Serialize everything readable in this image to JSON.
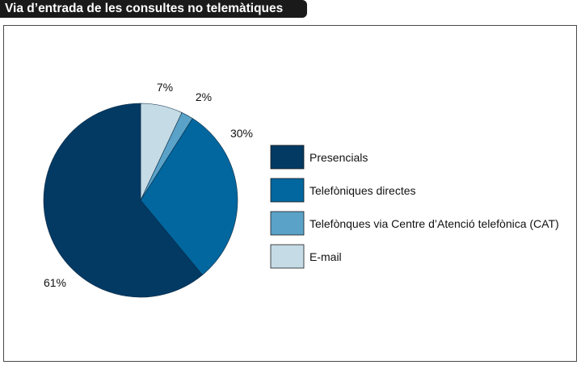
{
  "title": "Via d’entrada de les consultes no telemàtiques",
  "chart_data": {
    "type": "pie",
    "title": "Via d’entrada de les consultes no telemàtiques",
    "categories": [
      "Presencials",
      "Telefòniques directes",
      "Telefònques via Centre d’Atenció telefònica (CAT)",
      "E-mail"
    ],
    "values": [
      61,
      30,
      2,
      7
    ],
    "labels": [
      "61%",
      "30%",
      "2%",
      "7%"
    ],
    "colors": [
      "#023a64",
      "#01679e",
      "#5aa2c8",
      "#c5dbe6"
    ],
    "legend_position": "right"
  }
}
